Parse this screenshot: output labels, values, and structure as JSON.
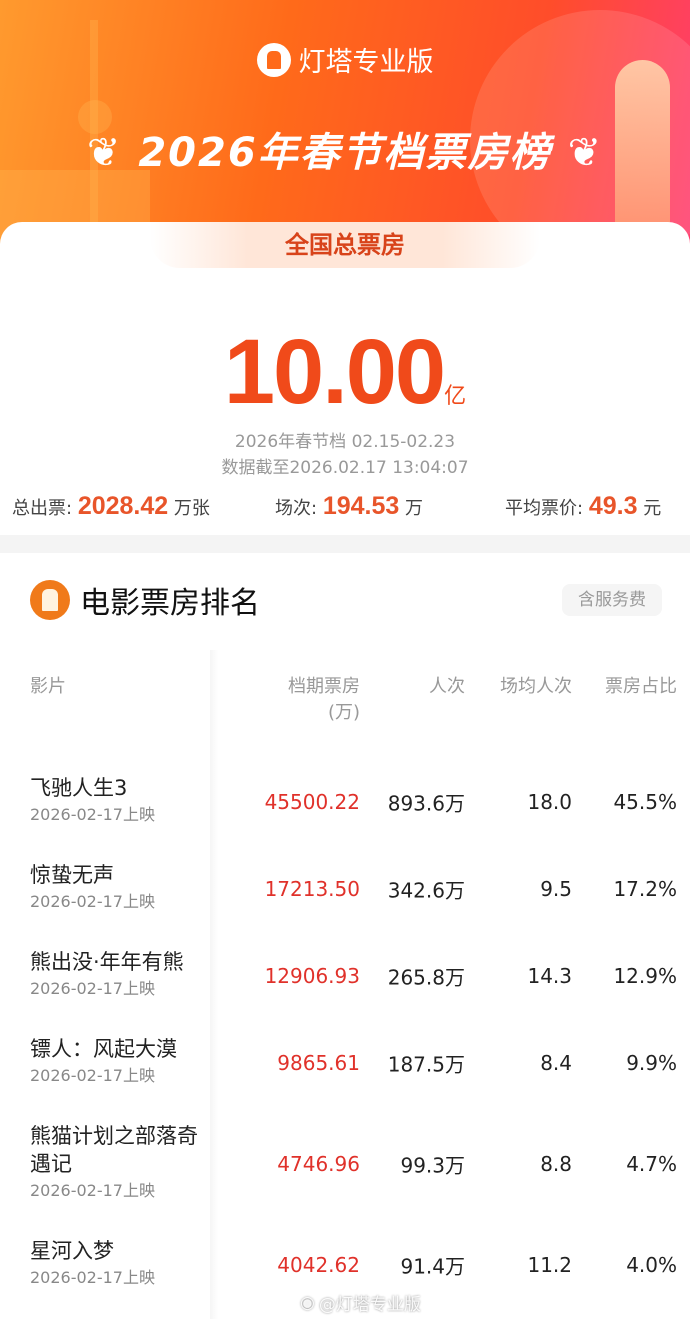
{
  "header": {
    "brand": "灯塔专业版",
    "title": "2026年春节档票房榜",
    "laurel_left": "❦",
    "laurel_right": "❦"
  },
  "total": {
    "label": "全国总票房",
    "value": "10.00",
    "unit": "亿",
    "period": "2026年春节档 02.15-02.23",
    "updated": "数据截至2026.02.17 13:04:07"
  },
  "stats": [
    {
      "label": "总出票:",
      "value": "2028.42",
      "unit": "万张"
    },
    {
      "label": "场次:",
      "value": "194.53",
      "unit": "万"
    },
    {
      "label": "平均票价:",
      "value": "49.3",
      "unit": "元"
    }
  ],
  "ranking": {
    "title": "电影票房排名",
    "tag": "含服务费",
    "columns": [
      "影片",
      "档期票房",
      "(万)",
      "人次",
      "场均人次",
      "票房占比"
    ],
    "rows": [
      {
        "name": "飞驰人生3",
        "date": "2026-02-17上映",
        "box": "45500.22",
        "admissions": "893.6万",
        "avg": "18.0",
        "share": "45.5%"
      },
      {
        "name": "惊蛰无声",
        "date": "2026-02-17上映",
        "box": "17213.50",
        "admissions": "342.6万",
        "avg": "9.5",
        "share": "17.2%"
      },
      {
        "name": "熊出没·年年有熊",
        "date": "2026-02-17上映",
        "box": "12906.93",
        "admissions": "265.8万",
        "avg": "14.3",
        "share": "12.9%"
      },
      {
        "name": "镖人：风起大漠",
        "date": "2026-02-17上映",
        "box": "9865.61",
        "admissions": "187.5万",
        "avg": "8.4",
        "share": "9.9%"
      },
      {
        "name": "熊猫计划之部落奇遇记",
        "date": "2026-02-17上映",
        "box": "4746.96",
        "admissions": "99.3万",
        "avg": "8.8",
        "share": "4.7%"
      },
      {
        "name": "星河入梦",
        "date": "2026-02-17上映",
        "box": "4042.62",
        "admissions": "91.4万",
        "avg": "11.2",
        "share": "4.0%"
      }
    ]
  },
  "watermark": "@灯塔专业版",
  "colors": {
    "accent": "#f04a1a",
    "box_value": "#e0312a"
  }
}
